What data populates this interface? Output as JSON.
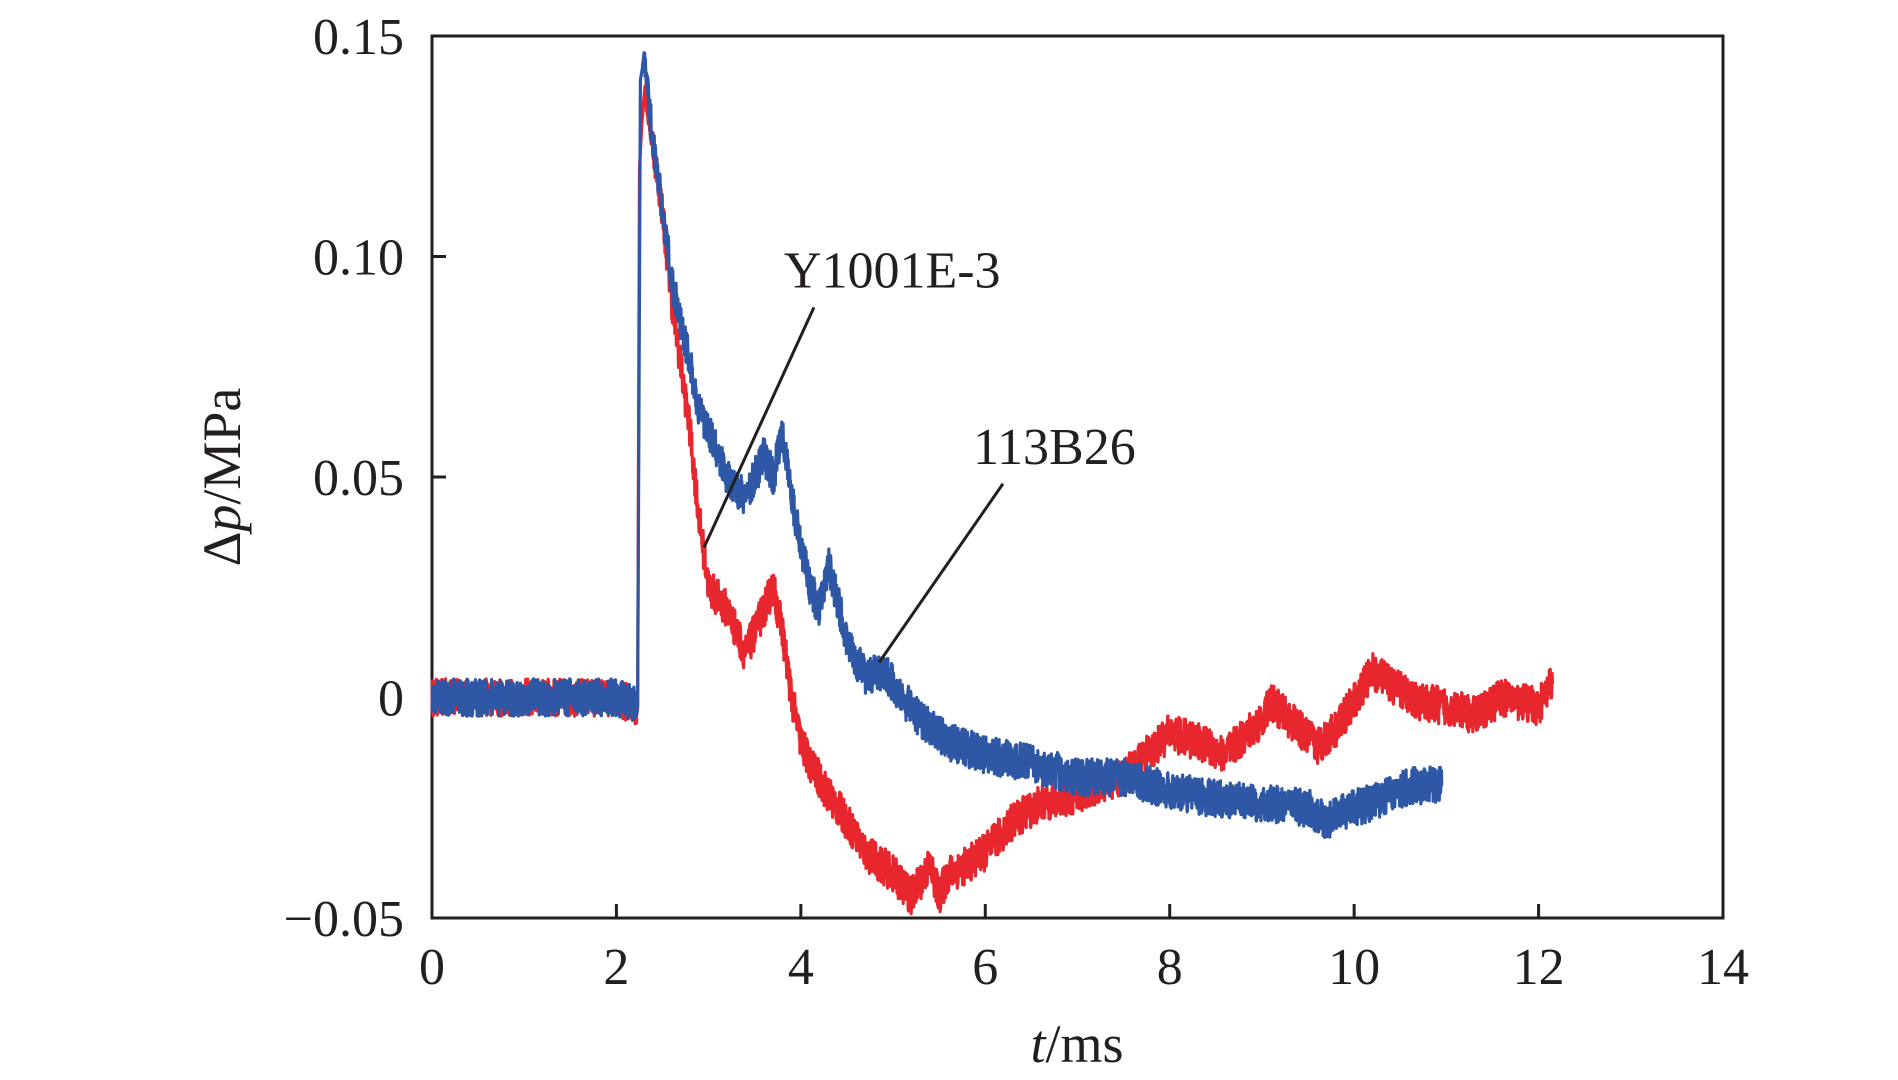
{
  "chart_data": {
    "type": "line",
    "title": "",
    "xlabel": {
      "italic": "t",
      "rest": "/ms"
    },
    "ylabel": {
      "prefix": "Δ",
      "italic": "p",
      "rest": "/MPa"
    },
    "xlim": [
      0,
      14
    ],
    "ylim": [
      -0.05,
      0.15
    ],
    "x_ticks": [
      0,
      2,
      4,
      6,
      8,
      10,
      12,
      14
    ],
    "x_tick_labels": [
      "0",
      "2",
      "4",
      "6",
      "8",
      "10",
      "12",
      "14"
    ],
    "y_ticks": [
      -0.05,
      0,
      0.05,
      0.1,
      0.15
    ],
    "y_tick_labels": [
      "−0.05",
      "0",
      "0.05",
      "0.10",
      "0.15"
    ],
    "grid": false,
    "legend": "none",
    "series": [
      {
        "name": "Y1001E-3",
        "color": "#e8262d",
        "x": [
          0,
          1,
          2,
          2.23,
          2.25,
          2.3,
          2.4,
          2.5,
          2.6,
          2.7,
          2.8,
          2.9,
          3.0,
          3.2,
          3.4,
          3.6,
          3.7,
          3.8,
          3.9,
          4.0,
          4.1,
          4.3,
          4.5,
          4.7,
          5.0,
          5.2,
          5.4,
          5.5,
          5.6,
          5.8,
          6.0,
          6.3,
          6.6,
          7.0,
          7.5,
          8.0,
          8.3,
          8.6,
          9.0,
          9.1,
          9.3,
          9.6,
          9.8,
          10.0,
          10.2,
          10.4,
          10.7,
          11.0,
          11.3,
          11.6,
          12.0,
          12.15
        ],
        "y": [
          0.0,
          0.0,
          0.0,
          -0.002,
          0.12,
          0.14,
          0.125,
          0.11,
          0.09,
          0.075,
          0.06,
          0.04,
          0.025,
          0.02,
          0.01,
          0.02,
          0.025,
          0.015,
          0.0,
          -0.01,
          -0.015,
          -0.022,
          -0.028,
          -0.035,
          -0.04,
          -0.045,
          -0.038,
          -0.045,
          -0.04,
          -0.038,
          -0.035,
          -0.028,
          -0.024,
          -0.022,
          -0.018,
          -0.008,
          -0.01,
          -0.013,
          -0.005,
          -0.001,
          -0.005,
          -0.011,
          -0.007,
          -0.001,
          0.006,
          0.003,
          -0.001,
          -0.002,
          -0.004,
          0.0,
          -0.002,
          0.003
        ]
      },
      {
        "name": "113B26",
        "color": "#2e57a6",
        "x": [
          0,
          1,
          2,
          2.23,
          2.26,
          2.3,
          2.4,
          2.5,
          2.6,
          2.7,
          2.8,
          2.9,
          3.0,
          3.2,
          3.4,
          3.5,
          3.6,
          3.7,
          3.8,
          3.9,
          4.0,
          4.1,
          4.2,
          4.3,
          4.4,
          4.5,
          4.7,
          4.9,
          5.1,
          5.3,
          5.6,
          6.0,
          6.5,
          7.0,
          7.5,
          8.0,
          8.5,
          9.0,
          9.5,
          9.7,
          10.0,
          10.3,
          10.6,
          10.95
        ],
        "y": [
          0.0,
          0.0,
          0.0,
          -0.002,
          0.14,
          0.145,
          0.125,
          0.11,
          0.095,
          0.085,
          0.075,
          0.065,
          0.06,
          0.05,
          0.045,
          0.05,
          0.055,
          0.05,
          0.06,
          0.045,
          0.035,
          0.025,
          0.02,
          0.03,
          0.022,
          0.012,
          0.005,
          0.006,
          0.0,
          -0.005,
          -0.01,
          -0.013,
          -0.015,
          -0.018,
          -0.018,
          -0.021,
          -0.023,
          -0.024,
          -0.025,
          -0.028,
          -0.025,
          -0.023,
          -0.02,
          -0.02
        ]
      }
    ],
    "annotations": [
      {
        "text": "Y1001E-3",
        "series": "Y1001E-3",
        "point": [
          2.95,
          0.034
        ],
        "text_pos": [
          4.25,
          0.093
        ]
      },
      {
        "text": "113B26",
        "series": "113B26",
        "point": [
          4.85,
          0.008
        ],
        "text_pos": [
          6.3,
          0.053
        ]
      }
    ]
  }
}
